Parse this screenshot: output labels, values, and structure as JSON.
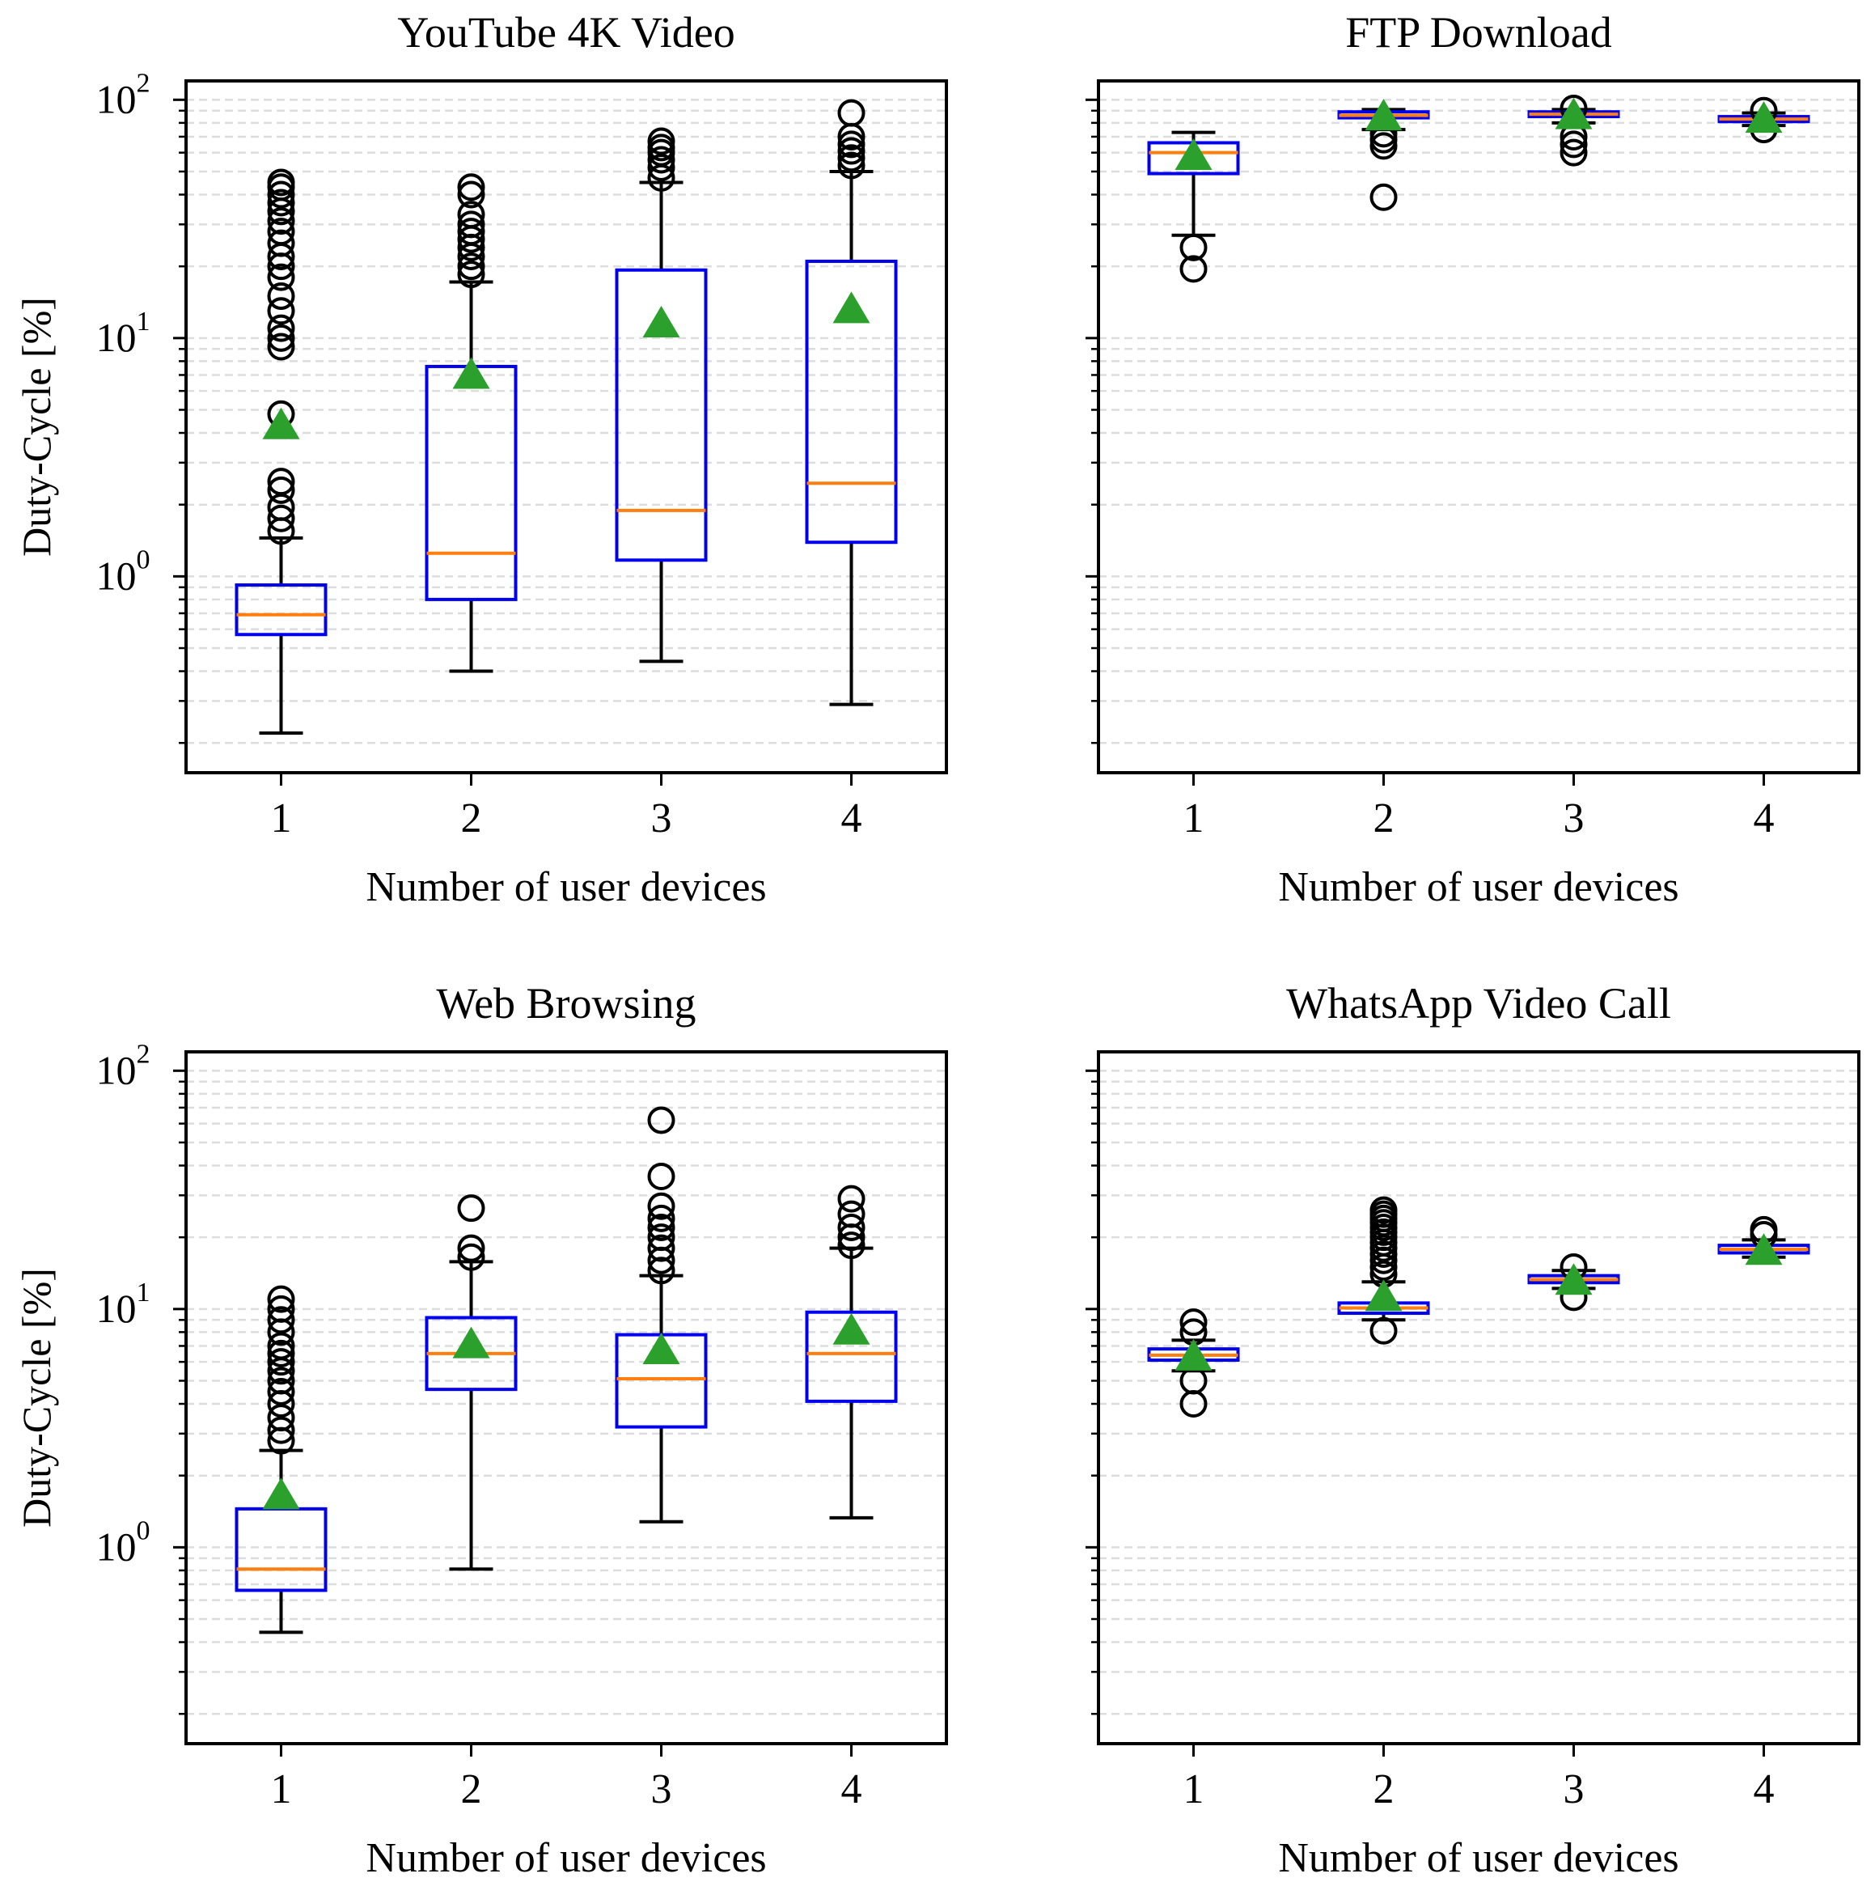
{
  "figure": {
    "grid": "2x2",
    "yscale": "log"
  },
  "colors": {
    "box": "#0000ee",
    "median": "#ff7f0e",
    "mean": "#2ca02c",
    "whisker": "#000000",
    "flier": "#000000",
    "grid": "#dddddd"
  },
  "ytick_labels": [
    {
      "base": "10",
      "exp": "0",
      "value": 1
    },
    {
      "base": "10",
      "exp": "1",
      "value": 10
    },
    {
      "base": "10",
      "exp": "2",
      "value": 100
    }
  ],
  "chart_data": [
    {
      "type": "box",
      "title": "YouTube 4K Video",
      "xlabel": "Number of user devices",
      "ylabel": "Duty-Cycle [%]",
      "yscale": "log",
      "ylim": [
        0.15,
        120
      ],
      "grid": "y-dashed",
      "categories": [
        "1",
        "2",
        "3",
        "4"
      ],
      "boxes": [
        {
          "whislo": 0.22,
          "q1": 0.57,
          "med": 0.69,
          "q3": 0.92,
          "whishi": 1.45,
          "mean": 4.3,
          "fliers": [
            1.55,
            1.75,
            1.95,
            2.3,
            2.5,
            4.8,
            9.2,
            10,
            11,
            13,
            15,
            18,
            20,
            22,
            25,
            28,
            31,
            34,
            37,
            40,
            43,
            45
          ]
        },
        {
          "whislo": 0.4,
          "q1": 0.8,
          "med": 1.25,
          "q3": 7.6,
          "whishi": 17.2,
          "mean": 7.0,
          "fliers": [
            18.5,
            20,
            22,
            24,
            26,
            28,
            30,
            33,
            40,
            43
          ]
        },
        {
          "whislo": 0.44,
          "q1": 1.17,
          "med": 1.89,
          "q3": 19.3,
          "whishi": 45,
          "mean": 11.5,
          "fliers": [
            47,
            52,
            56,
            60,
            63,
            67
          ]
        },
        {
          "whislo": 0.29,
          "q1": 1.39,
          "med": 2.46,
          "q3": 21,
          "whishi": 50,
          "mean": 13.2,
          "fliers": [
            53,
            57,
            61,
            65,
            70,
            88
          ]
        }
      ]
    },
    {
      "type": "box",
      "title": "FTP Download",
      "xlabel": "Number of user devices",
      "ylabel": "",
      "yscale": "log",
      "ylim": [
        0.15,
        120
      ],
      "grid": "y-dashed",
      "categories": [
        "1",
        "2",
        "3",
        "4"
      ],
      "boxes": [
        {
          "whislo": 27,
          "q1": 49,
          "med": 60,
          "q3": 66,
          "whishi": 73,
          "mean": 58,
          "fliers": [
            24,
            19.5
          ]
        },
        {
          "whislo": 75,
          "q1": 84,
          "med": 86,
          "q3": 89,
          "whishi": 91,
          "mean": 85,
          "fliers": [
            72,
            68,
            64,
            39
          ]
        },
        {
          "whislo": 80,
          "q1": 85,
          "med": 87,
          "q3": 89,
          "whishi": 91,
          "mean": 86,
          "fliers": [
            92,
            70,
            65,
            60
          ]
        },
        {
          "whislo": 78,
          "q1": 81,
          "med": 83,
          "q3": 85,
          "whishi": 88,
          "mean": 83,
          "fliers": [
            90,
            75
          ]
        }
      ]
    },
    {
      "type": "box",
      "title": "Web Browsing",
      "xlabel": "Number of user devices",
      "ylabel": "Duty-Cycle [%]",
      "yscale": "log",
      "ylim": [
        0.15,
        120
      ],
      "grid": "y-dashed",
      "categories": [
        "1",
        "2",
        "3",
        "4"
      ],
      "boxes": [
        {
          "whislo": 0.44,
          "q1": 0.66,
          "med": 0.81,
          "q3": 1.45,
          "whishi": 2.55,
          "mean": 1.65,
          "fliers": [
            2.8,
            3.1,
            3.5,
            4.0,
            4.5,
            5.0,
            5.5,
            6.0,
            6.5,
            7.0,
            8.0,
            9.0,
            10,
            11
          ]
        },
        {
          "whislo": 0.81,
          "q1": 4.6,
          "med": 6.5,
          "q3": 9.2,
          "whishi": 15.8,
          "mean": 7.1,
          "fliers": [
            16.5,
            18,
            26.5
          ]
        },
        {
          "whislo": 1.28,
          "q1": 3.2,
          "med": 5.1,
          "q3": 7.8,
          "whishi": 13.8,
          "mean": 6.7,
          "fliers": [
            14.5,
            16,
            18,
            20,
            22,
            24,
            27,
            36,
            62
          ]
        },
        {
          "whislo": 1.33,
          "q1": 4.1,
          "med": 6.5,
          "q3": 9.7,
          "whishi": 18,
          "mean": 8.1,
          "fliers": [
            18.5,
            20,
            22,
            25,
            29
          ]
        }
      ]
    },
    {
      "type": "box",
      "title": "WhatsApp Video Call",
      "xlabel": "Number of user devices",
      "ylabel": "",
      "yscale": "log",
      "ylim": [
        0.15,
        120
      ],
      "grid": "y-dashed",
      "categories": [
        "1",
        "2",
        "3",
        "4"
      ],
      "boxes": [
        {
          "whislo": 5.5,
          "q1": 6.1,
          "med": 6.4,
          "q3": 6.8,
          "whishi": 7.4,
          "mean": 6.3,
          "fliers": [
            8.0,
            8.8,
            5.0,
            4.0
          ]
        },
        {
          "whislo": 9.0,
          "q1": 9.6,
          "med": 10.1,
          "q3": 10.6,
          "whishi": 13,
          "mean": 11.2,
          "fliers": [
            14,
            15,
            16,
            17,
            18,
            19,
            20,
            21,
            22,
            23,
            24,
            25,
            26,
            8.1
          ]
        },
        {
          "whislo": 12.2,
          "q1": 12.9,
          "med": 13.3,
          "q3": 13.8,
          "whishi": 14.5,
          "mean": 13.1,
          "fliers": [
            15,
            11.2
          ]
        },
        {
          "whislo": 16.5,
          "q1": 17.2,
          "med": 17.8,
          "q3": 18.5,
          "whishi": 19.5,
          "mean": 17.5,
          "fliers": [
            20.5,
            21.5
          ]
        }
      ]
    }
  ]
}
